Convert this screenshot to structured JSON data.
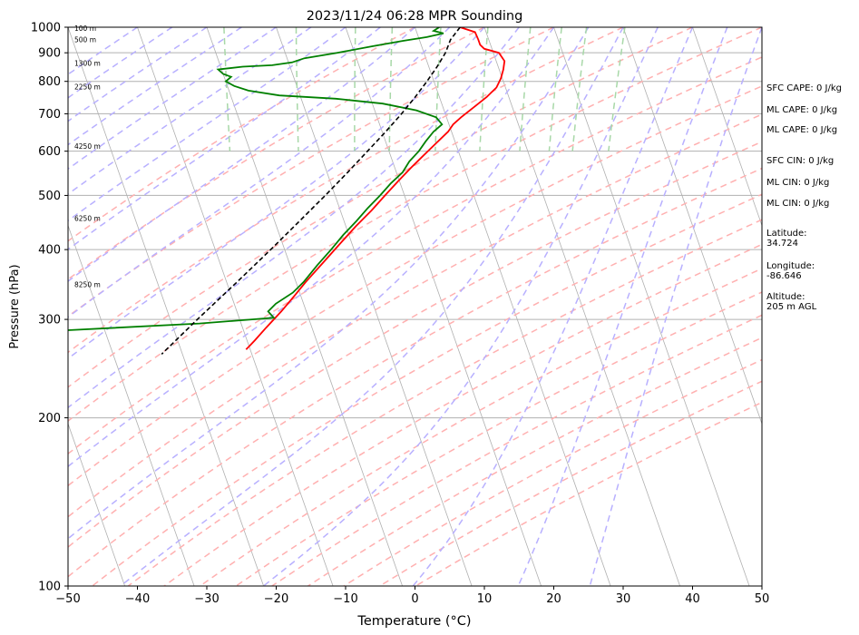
{
  "chart_data": {
    "type": "line",
    "title": "2023/11/24 06:28 MPR Sounding",
    "xlabel": "Temperature (°C)",
    "ylabel": "Pressure (hPa)",
    "xlim": [
      -50,
      50
    ],
    "ylim": [
      1000,
      100
    ],
    "y_scale": "log",
    "skew": true,
    "grid": true,
    "x_ticks": [
      -50,
      -40,
      -30,
      -20,
      -10,
      0,
      10,
      20,
      30,
      40,
      50
    ],
    "x_tick_labels": [
      "−50",
      "−40",
      "−30",
      "−20",
      "−10",
      "0",
      "10",
      "20",
      "30",
      "40",
      "50"
    ],
    "y_ticks": [
      1000,
      900,
      800,
      700,
      600,
      500,
      400,
      300,
      200,
      100
    ],
    "y_tick_labels": [
      "1000",
      "900",
      "800",
      "700",
      "600",
      "500",
      "400",
      "300",
      "200",
      "100"
    ],
    "height_labels": [
      {
        "p": 992,
        "label": "100 m"
      },
      {
        "p": 948,
        "label": "500 m"
      },
      {
        "p": 860,
        "label": "1300 m"
      },
      {
        "p": 780,
        "label": "2250 m"
      },
      {
        "p": 610,
        "label": "4250 m"
      },
      {
        "p": 454,
        "label": "6250 m"
      },
      {
        "p": 345,
        "label": "8250 m"
      }
    ],
    "series": [
      {
        "color": "#ff0000",
        "style": "solid",
        "points": [
          [
            1000,
            6.5
          ],
          [
            980,
            8.4
          ],
          [
            950,
            8.5
          ],
          [
            930,
            8.5
          ],
          [
            915,
            8.9
          ],
          [
            900,
            10.8
          ],
          [
            870,
            11.2
          ],
          [
            840,
            10.6
          ],
          [
            810,
            9.8
          ],
          [
            780,
            8.7
          ],
          [
            750,
            6.8
          ],
          [
            720,
            4.5
          ],
          [
            690,
            2.1
          ],
          [
            670,
            0.6
          ],
          [
            650,
            -0.5
          ],
          [
            620,
            -2.8
          ],
          [
            590,
            -5.2
          ],
          [
            560,
            -7.7
          ],
          [
            530,
            -10.2
          ],
          [
            500,
            -12.8
          ],
          [
            470,
            -15.5
          ],
          [
            440,
            -18.6
          ],
          [
            410,
            -21.7
          ],
          [
            380,
            -25.0
          ],
          [
            350,
            -28.6
          ],
          [
            330,
            -31.0
          ],
          [
            310,
            -33.6
          ],
          [
            290,
            -36.6
          ],
          [
            275,
            -38.9
          ],
          [
            265,
            -40.6
          ]
        ]
      },
      {
        "color": "#008000",
        "style": "solid",
        "points": [
          [
            1000,
            3.5
          ],
          [
            985,
            2.5
          ],
          [
            975,
            3.8
          ],
          [
            960,
            1.2
          ],
          [
            945,
            -2.5
          ],
          [
            925,
            -7.0
          ],
          [
            900,
            -12.5
          ],
          [
            880,
            -17.5
          ],
          [
            865,
            -19.5
          ],
          [
            855,
            -22.5
          ],
          [
            850,
            -26.8
          ],
          [
            840,
            -30.5
          ],
          [
            825,
            -30.0
          ],
          [
            815,
            -29.0
          ],
          [
            800,
            -30.0
          ],
          [
            785,
            -29.0
          ],
          [
            770,
            -27.2
          ],
          [
            755,
            -23.0
          ],
          [
            745,
            -15.0
          ],
          [
            730,
            -8.5
          ],
          [
            710,
            -4.0
          ],
          [
            690,
            -1.5
          ],
          [
            670,
            -1.0
          ],
          [
            650,
            -2.6
          ],
          [
            625,
            -4.2
          ],
          [
            600,
            -5.7
          ],
          [
            575,
            -7.6
          ],
          [
            550,
            -9.1
          ],
          [
            525,
            -11.4
          ],
          [
            500,
            -13.5
          ],
          [
            475,
            -15.9
          ],
          [
            450,
            -18.2
          ],
          [
            425,
            -20.8
          ],
          [
            400,
            -23.3
          ],
          [
            375,
            -26.1
          ],
          [
            350,
            -28.9
          ],
          [
            335,
            -31.0
          ],
          [
            320,
            -34.0
          ],
          [
            310,
            -35.5
          ],
          [
            302,
            -35.0
          ],
          [
            295,
            -46.0
          ],
          [
            285,
            -70.0
          ]
        ]
      },
      {
        "color": "#000000",
        "style": "dashed",
        "points": [
          [
            1000,
            6.5
          ],
          [
            950,
            4.5
          ],
          [
            900,
            3.1
          ],
          [
            850,
            1.2
          ],
          [
            800,
            -1.0
          ],
          [
            750,
            -3.5
          ],
          [
            700,
            -6.3
          ],
          [
            650,
            -9.5
          ],
          [
            600,
            -13.1
          ],
          [
            550,
            -17.0
          ],
          [
            500,
            -21.4
          ],
          [
            450,
            -26.4
          ],
          [
            400,
            -32.0
          ],
          [
            350,
            -38.5
          ],
          [
            300,
            -46.1
          ],
          [
            260,
            -53.0
          ]
        ]
      }
    ],
    "annotations": [
      "SFC CAPE: 0 J/kg",
      "ML CAPE: 0 J/kg",
      "ML CAPE: 0 J/kg",
      "SFC CIN: 0 J/kg",
      "ML CIN: 0 J/kg",
      "ML CIN: 0 J/kg",
      "Latitude:\n34.724",
      "Longitude:\n-86.646",
      "Altitude:\n205 m AGL"
    ],
    "colors": {
      "isotherm": "#b0b0b0",
      "isobar": "#b0b0b0",
      "dry_adiabat": "#ffb0b0",
      "moist_adiabat": "#b8b0ff",
      "mixing_ratio": "#a8d8a8"
    }
  }
}
